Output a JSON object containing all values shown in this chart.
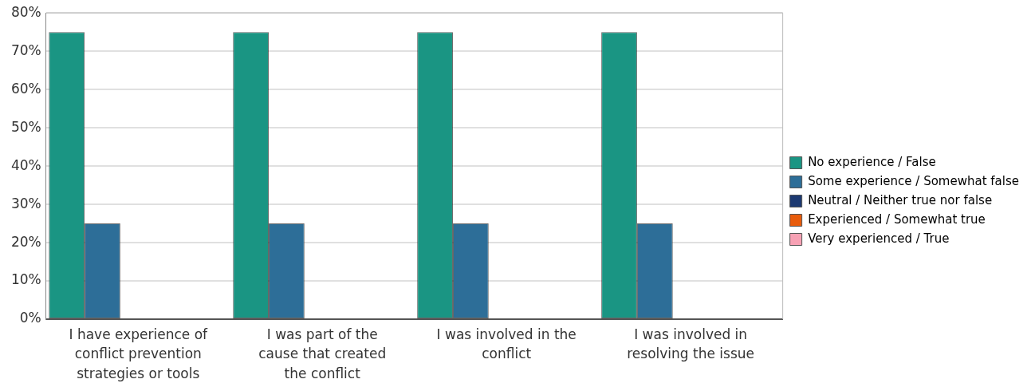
{
  "chart_data": {
    "type": "bar",
    "categories": [
      "I have experience of conflict prevention strategies or tools",
      "I was part of the cause that created the conflict",
      "I was involved in the conflict",
      "I was involved in resolving the issue"
    ],
    "series": [
      {
        "name": "No experience / False",
        "color": "#1a9583",
        "values": [
          75,
          75,
          75,
          75
        ]
      },
      {
        "name": "Some experience / Somewhat false",
        "color": "#2d6e98",
        "values": [
          25,
          25,
          25,
          25
        ]
      },
      {
        "name": "Neutral / Neither true nor false",
        "color": "#1d3a72",
        "values": [
          0,
          0,
          0,
          0
        ]
      },
      {
        "name": "Experienced / Somewhat true",
        "color": "#e85c0c",
        "values": [
          0,
          0,
          0,
          0
        ]
      },
      {
        "name": "Very experienced / True",
        "color": "#f7a1b4",
        "values": [
          0,
          0,
          0,
          0
        ]
      }
    ],
    "ylim": [
      0,
      80
    ],
    "yticks": [
      {
        "value": 0,
        "label": "0%"
      },
      {
        "value": 10,
        "label": "10%"
      },
      {
        "value": 20,
        "label": "20%"
      },
      {
        "value": 30,
        "label": "30%"
      },
      {
        "value": 40,
        "label": "40%"
      },
      {
        "value": 50,
        "label": "50%"
      },
      {
        "value": 60,
        "label": "60%"
      },
      {
        "value": 70,
        "label": "70%"
      },
      {
        "value": 80,
        "label": "80%"
      }
    ],
    "grid": "y",
    "legend": "right"
  }
}
